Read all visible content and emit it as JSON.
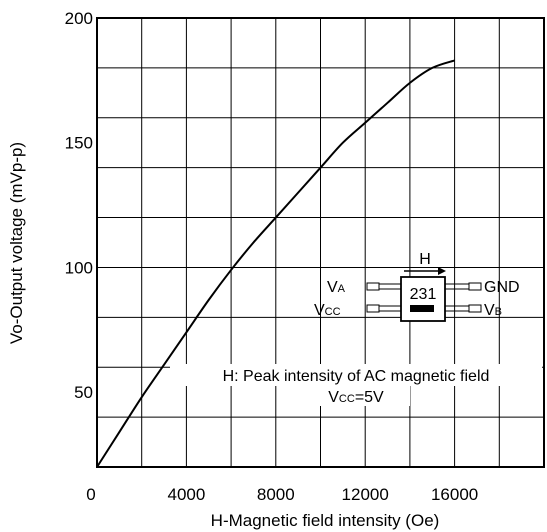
{
  "chart_data": {
    "type": "line",
    "xlabel": "H-Magnetic field intensity (Oe)",
    "ylabel": "Vo-Output voltage (mVp-p)",
    "xlim": [
      0,
      20000
    ],
    "ylim": [
      20,
      200
    ],
    "x_ticks": [
      0,
      4000,
      8000,
      12000,
      16000
    ],
    "x_tick_labels": [
      "0",
      "4000",
      "8000",
      "12000",
      "16000"
    ],
    "y_ticks": [
      50,
      100,
      150,
      200
    ],
    "y_tick_labels": [
      "50",
      "100",
      "150",
      "200"
    ],
    "grid": true,
    "series": [
      {
        "x": [
          0,
          1000,
          2000,
          3000,
          4000,
          5000,
          6000,
          7000,
          8000,
          9000,
          10000,
          11000,
          12000,
          13000,
          14000,
          15000,
          16000
        ],
        "y": [
          20,
          34,
          48,
          61,
          74,
          87,
          99,
          110,
          120,
          130,
          140,
          150,
          158,
          166,
          174,
          180,
          183
        ]
      }
    ],
    "annotation": {
      "field_arrow_label": "H",
      "chip_label": "231",
      "pins_left": [
        {
          "main": "V",
          "sub": "A"
        },
        {
          "main": "V",
          "sub": "CC"
        }
      ],
      "pins_right": [
        {
          "main": "GND",
          "sub": ""
        },
        {
          "main": "V",
          "sub": "B"
        }
      ],
      "note_line1": "H: Peak intensity of AC magnetic field",
      "note_line2_main": "V",
      "note_line2_sub": "CC",
      "note_line2_rest": "=5V"
    }
  }
}
